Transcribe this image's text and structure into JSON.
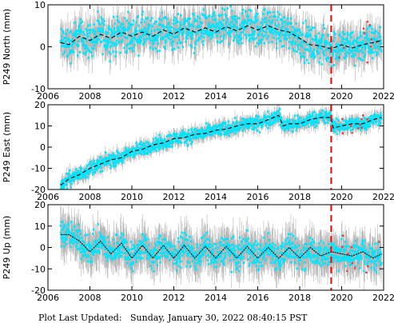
{
  "footer": {
    "label": "Plot Last Updated:",
    "value": "Sunday, January 30, 2022 08:40:15 PST"
  },
  "colors": {
    "error_bars": "#b4b4b4",
    "observations": "#00e5ff",
    "model": "#000000",
    "event_marker": "#ff0000",
    "outliers": "#ff3333"
  },
  "chart_data": [
    {
      "type": "scatter",
      "ylabel": "P249 North (mm)",
      "xlim": [
        2006,
        2022
      ],
      "ylim": [
        -10,
        10
      ],
      "xticks": [
        2006,
        2008,
        2010,
        2012,
        2014,
        2016,
        2018,
        2020,
        2022
      ],
      "yticks": [
        -10,
        0,
        10
      ],
      "xtick_labels_shown": true,
      "vertical_line_x": 2019.5,
      "model": {
        "x": [
          2006.6,
          2007.0,
          2007.5,
          2008.0,
          2008.5,
          2009.0,
          2009.5,
          2010.0,
          2010.5,
          2011.0,
          2011.5,
          2012.0,
          2012.5,
          2013.0,
          2013.5,
          2014.0,
          2014.5,
          2015.0,
          2015.5,
          2016.0,
          2016.5,
          2017.0,
          2017.5,
          2018.0,
          2018.5,
          2019.0,
          2019.5,
          2020.0,
          2020.5,
          2021.0,
          2021.5,
          2021.9
        ],
        "y": [
          1,
          0.5,
          2.5,
          1.5,
          3,
          2,
          3.5,
          2.5,
          3.5,
          2.5,
          4,
          3,
          4.5,
          3.5,
          4.5,
          3.5,
          4.8,
          3.8,
          5,
          4,
          5,
          4,
          3.5,
          2,
          0.5,
          0.2,
          -0.5,
          0.5,
          -0.3,
          0.5,
          1,
          1.5
        ]
      },
      "observations": {
        "mean": [
          1,
          0.5,
          2.5,
          1.5,
          3,
          2,
          3.5,
          2.5,
          3.5,
          2.5,
          4,
          3,
          4.5,
          3.5,
          4.5,
          3.5,
          4.8,
          3.8,
          5,
          4,
          5,
          4,
          3.5,
          2,
          0.5,
          0.2,
          -0.5,
          0.5,
          -0.3,
          0.5,
          1,
          1.5
        ],
        "spread": 3.2,
        "error": 3.5
      }
    },
    {
      "type": "scatter",
      "ylabel": "P249 East (mm)",
      "xlim": [
        2006,
        2022
      ],
      "ylim": [
        -20,
        20
      ],
      "xticks": [
        2006,
        2008,
        2010,
        2012,
        2014,
        2016,
        2018,
        2020,
        2022
      ],
      "yticks": [
        -20,
        -10,
        0,
        10,
        20
      ],
      "xtick_labels_shown": true,
      "vertical_line_x": 2019.5,
      "model": {
        "x": [
          2006.6,
          2007.0,
          2007.5,
          2008.0,
          2008.5,
          2009.0,
          2009.5,
          2010.0,
          2010.5,
          2011.0,
          2011.5,
          2012.0,
          2012.5,
          2013.0,
          2013.5,
          2014.0,
          2014.5,
          2015.0,
          2015.5,
          2016.0,
          2016.5,
          2017.0,
          2017.2,
          2017.5,
          2018.0,
          2018.5,
          2019.0,
          2019.5,
          2019.6,
          2020.0,
          2020.5,
          2021.0,
          2021.5,
          2021.9
        ],
        "y": [
          -18,
          -15,
          -13,
          -10,
          -8,
          -6,
          -5,
          -2,
          -1,
          1,
          2,
          4,
          4.5,
          6,
          6.5,
          8,
          8.5,
          10,
          11,
          11,
          13,
          15,
          10,
          11,
          11,
          13,
          14,
          14,
          9,
          10,
          11,
          11,
          13,
          14
        ]
      },
      "observations": {
        "mean": [
          -18,
          -15,
          -13,
          -10,
          -8,
          -6,
          -5,
          -2,
          -1,
          1,
          2,
          4,
          4.5,
          6,
          6.5,
          8,
          8.5,
          10,
          11,
          11,
          13,
          15,
          10,
          11,
          11,
          13,
          14,
          14,
          9,
          10,
          11,
          11,
          13,
          14
        ],
        "spread": 2.5,
        "error": 3
      }
    },
    {
      "type": "scatter",
      "ylabel": "P249 Up (mm)",
      "xlim": [
        2006,
        2022
      ],
      "ylim": [
        -20,
        20
      ],
      "xticks": [
        2006,
        2008,
        2010,
        2012,
        2014,
        2016,
        2018,
        2020,
        2022
      ],
      "yticks": [
        -20,
        -10,
        0,
        10,
        20
      ],
      "xtick_labels_shown": true,
      "vertical_line_x": 2019.5,
      "model": {
        "x": [
          2006.6,
          2007.0,
          2007.5,
          2008.0,
          2008.5,
          2009.0,
          2009.5,
          2010.0,
          2010.5,
          2011.0,
          2011.5,
          2012.0,
          2012.5,
          2013.0,
          2013.5,
          2014.0,
          2014.5,
          2015.0,
          2015.5,
          2016.0,
          2016.5,
          2017.0,
          2017.5,
          2018.0,
          2018.5,
          2019.0,
          2019.5,
          2020.0,
          2020.5,
          2021.0,
          2021.5,
          2021.9
        ],
        "y": [
          6,
          6,
          3,
          -2,
          3,
          -3,
          2,
          -5,
          1,
          -5,
          1,
          -5,
          1,
          -5,
          0.5,
          -5,
          0.5,
          -5,
          0.5,
          -5,
          0,
          -5,
          0,
          -5,
          0,
          -4,
          -2,
          -3,
          -4,
          -2,
          -5,
          -3
        ]
      },
      "observations": {
        "mean": [
          6,
          6,
          3,
          -2,
          3,
          -3,
          2,
          -5,
          1,
          -5,
          1,
          -5,
          1,
          -5,
          0.5,
          -5,
          0.5,
          -5,
          0.5,
          -5,
          0,
          -5,
          0,
          -5,
          0,
          -4,
          -2,
          -3,
          -4,
          -2,
          -5,
          -3
        ],
        "spread": 5,
        "error": 8
      }
    }
  ]
}
